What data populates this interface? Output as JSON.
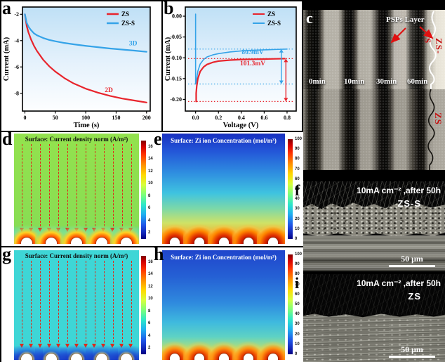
{
  "figure": {
    "background": "#000000",
    "accent_red": "#e8242c",
    "accent_blue": "#35a3e8"
  },
  "chart_data": [
    {
      "id": "a",
      "type": "line",
      "xlabel": "Time (s)",
      "ylabel": "Current (mA)",
      "xlim": [
        -4,
        206
      ],
      "ylim": [
        -9.35,
        -1.45
      ],
      "xticks": [
        {
          "v": 0,
          "l": "0"
        },
        {
          "v": 50,
          "l": "50"
        },
        {
          "v": 100,
          "l": "100"
        },
        {
          "v": 150,
          "l": "150"
        },
        {
          "v": 200,
          "l": "200"
        }
      ],
      "yticks": [
        {
          "v": -2,
          "l": "-2"
        },
        {
          "v": -4,
          "l": "-4"
        },
        {
          "v": -6,
          "l": "-6"
        },
        {
          "v": -8,
          "l": "-8"
        }
      ],
      "legend": [
        {
          "label": "ZS",
          "color": "#e8242c"
        },
        {
          "label": "ZS-S",
          "color": "#35a3e8"
        }
      ],
      "series": [
        {
          "name": "ZS",
          "color": "#e8242c",
          "width": 2.2,
          "points": [
            [
              0,
              -2.0
            ],
            [
              3,
              -2.9
            ],
            [
              6,
              -3.4
            ],
            [
              10,
              -3.9
            ],
            [
              15,
              -4.4
            ],
            [
              20,
              -4.8
            ],
            [
              30,
              -5.45
            ],
            [
              40,
              -5.95
            ],
            [
              50,
              -6.35
            ],
            [
              65,
              -6.85
            ],
            [
              80,
              -7.25
            ],
            [
              100,
              -7.65
            ],
            [
              120,
              -7.95
            ],
            [
              140,
              -8.2
            ],
            [
              160,
              -8.4
            ],
            [
              180,
              -8.55
            ],
            [
              200,
              -8.7
            ]
          ]
        },
        {
          "name": "ZS-S",
          "color": "#35a3e8",
          "width": 2.2,
          "points": [
            [
              0,
              -2.0
            ],
            [
              3,
              -2.65
            ],
            [
              6,
              -2.95
            ],
            [
              10,
              -3.2
            ],
            [
              15,
              -3.45
            ],
            [
              20,
              -3.6
            ],
            [
              30,
              -3.8
            ],
            [
              40,
              -3.95
            ],
            [
              50,
              -4.05
            ],
            [
              65,
              -4.18
            ],
            [
              80,
              -4.28
            ],
            [
              100,
              -4.4
            ],
            [
              120,
              -4.5
            ],
            [
              140,
              -4.6
            ],
            [
              160,
              -4.68
            ],
            [
              180,
              -4.76
            ],
            [
              200,
              -4.85
            ]
          ]
        }
      ],
      "ref_lines": [],
      "arrows": [],
      "annotations": [
        {
          "text": "2D",
          "x": 138,
          "y": -7.9,
          "color": "#e8242c"
        },
        {
          "text": "3D",
          "x": 178,
          "y": -4.35,
          "color": "#35a3e8"
        }
      ]
    },
    {
      "id": "b",
      "type": "line",
      "xlabel": "Voltage (V)",
      "ylabel": "Current (mA)",
      "xlim": [
        -0.09,
        0.88
      ],
      "ylim": [
        -0.228,
        0.022
      ],
      "xticks": [
        {
          "v": 0,
          "l": "0.0"
        },
        {
          "v": 0.2,
          "l": "0.2"
        },
        {
          "v": 0.4,
          "l": "0.4"
        },
        {
          "v": 0.6,
          "l": "0.6"
        },
        {
          "v": 0.8,
          "l": "0.8"
        }
      ],
      "yticks": [
        {
          "v": 0,
          "l": "0.00"
        },
        {
          "v": -0.05,
          "l": "-0.05"
        },
        {
          "v": -0.1,
          "l": "-0.10"
        },
        {
          "v": -0.15,
          "l": "-0.15"
        },
        {
          "v": -0.2,
          "l": "-0.20"
        }
      ],
      "legend": [
        {
          "label": "ZS",
          "color": "#e8242c"
        },
        {
          "label": "ZS-S",
          "color": "#35a3e8"
        }
      ],
      "series": [
        {
          "name": "ZS-S",
          "color": "#35a3e8",
          "width": 1.6,
          "points": [
            [
              0,
              0.005
            ],
            [
              0,
              -0.163
            ],
            [
              0.01,
              -0.15
            ],
            [
              0.02,
              -0.132
            ],
            [
              0.04,
              -0.115
            ],
            [
              0.07,
              -0.104
            ],
            [
              0.1,
              -0.098
            ],
            [
              0.15,
              -0.093
            ],
            [
              0.2,
              -0.09
            ],
            [
              0.3,
              -0.086
            ],
            [
              0.4,
              -0.0835
            ],
            [
              0.5,
              -0.082
            ],
            [
              0.6,
              -0.081
            ],
            [
              0.7,
              -0.08
            ],
            [
              0.8,
              -0.079
            ]
          ]
        },
        {
          "name": "ZS",
          "color": "#e8242c",
          "width": 2.2,
          "points": [
            [
              0.005,
              -0.205
            ],
            [
              0.005,
              -0.185
            ],
            [
              0.01,
              -0.168
            ],
            [
              0.02,
              -0.15
            ],
            [
              0.04,
              -0.133
            ],
            [
              0.07,
              -0.122
            ],
            [
              0.1,
              -0.116
            ],
            [
              0.15,
              -0.111
            ],
            [
              0.2,
              -0.108
            ],
            [
              0.3,
              -0.1055
            ],
            [
              0.4,
              -0.104
            ],
            [
              0.5,
              -0.1035
            ],
            [
              0.6,
              -0.103
            ],
            [
              0.7,
              -0.1025
            ],
            [
              0.78,
              -0.102
            ]
          ]
        }
      ],
      "ref_lines": [
        {
          "y": -0.079,
          "color": "#35a3e8"
        },
        {
          "y": -0.163,
          "color": "#35a3e8"
        },
        {
          "y": -0.102,
          "color": "#e8242c"
        },
        {
          "y": -0.205,
          "color": "#e8242c"
        }
      ],
      "arrows": [
        {
          "x": 0.75,
          "y1": -0.079,
          "y2": -0.163,
          "color": "#35a3e8"
        },
        {
          "x": 0.79,
          "y1": -0.102,
          "y2": -0.205,
          "color": "#e8242c"
        }
      ],
      "annotations": [
        {
          "text": "80.9mV",
          "x": 0.5,
          "y": -0.0915,
          "color": "#35a3e8"
        },
        {
          "text": "101.3mV",
          "x": 0.5,
          "y": -0.1185,
          "color": "#e8242c"
        }
      ]
    }
  ],
  "panels": {
    "a": {
      "letter": "a"
    },
    "b": {
      "letter": "b"
    },
    "c": {
      "letter": "c",
      "psps_label": "PSPs Layer",
      "time_labels": [
        "0min",
        "10min",
        "30min",
        "60min"
      ],
      "label_top": "ZS-S",
      "label_bottom": "ZS"
    },
    "d": {
      "letter": "d",
      "title": "Surface: Current density norm (A/m²)",
      "colorbar": {
        "min": 1,
        "max": 17,
        "ticks": [
          16,
          14,
          12,
          10,
          8,
          6,
          4,
          2
        ]
      },
      "arrow_count": 13,
      "bump_count": 5
    },
    "e": {
      "letter": "e",
      "title": "Surface: Zi ion Concentration (mol/m³)",
      "colorbar": {
        "min": 0,
        "max": 100,
        "ticks": [
          100,
          90,
          80,
          70,
          60,
          50,
          40,
          30,
          20,
          10,
          0
        ]
      },
      "arrow_count": 0,
      "bump_count": 5
    },
    "g": {
      "letter": "g",
      "title": "Surface: Current density norm (A/m²)",
      "colorbar": {
        "min": 1,
        "max": 17,
        "ticks": [
          16,
          14,
          12,
          10,
          8,
          6,
          4,
          2
        ]
      },
      "arrow_count": 13,
      "bump_count": 5
    },
    "h": {
      "letter": "h",
      "title": "Surface: Zi ion Concentration (mol/m³)",
      "colorbar": {
        "min": 0,
        "max": 100,
        "ticks": [
          100,
          90,
          80,
          70,
          60,
          50,
          40,
          30,
          20,
          10,
          0
        ]
      },
      "arrow_count": 0,
      "bump_count": 5
    },
    "f": {
      "letter": "f",
      "condition": "10mA cm⁻² ,after 50h",
      "sample": "ZS-S",
      "scale_label": "50 μm"
    },
    "i": {
      "letter": "i",
      "condition": "10mA cm⁻² ,after 50h",
      "sample": "ZS",
      "scale_label": "50 μm"
    }
  }
}
